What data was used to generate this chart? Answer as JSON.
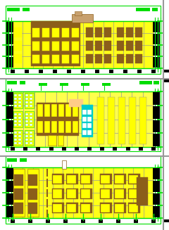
{
  "bg": "#ffffff",
  "green": "#00dd00",
  "yellow": "#ffff00",
  "brown": "#8B5E1A",
  "tan": "#c8a06e",
  "gray": "#999999",
  "cyan": "#00cccc",
  "peach": "#ffcc88",
  "black": "#000000",
  "white": "#ffffff",
  "dgray": "#bbbbbb",
  "lgray": "#dddddd"
}
